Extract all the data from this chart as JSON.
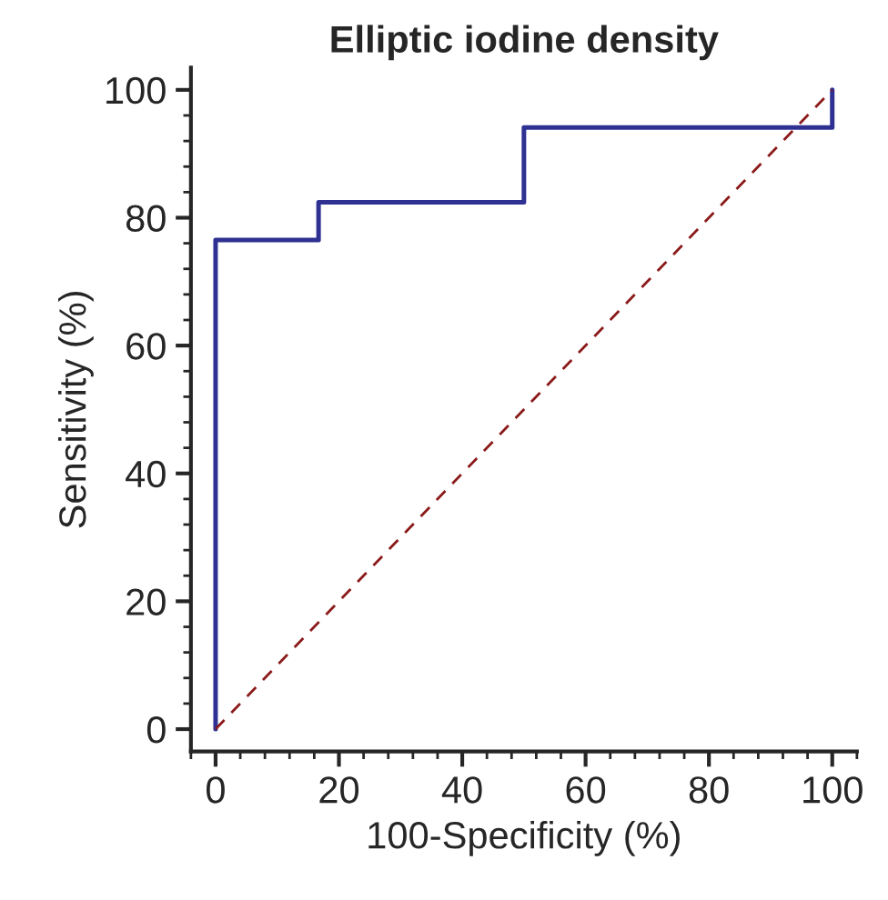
{
  "chart_data": {
    "type": "line",
    "title": "Elliptic iodine density",
    "xlabel": "100-Specificity (%)",
    "ylabel": "Sensitivity (%)",
    "xlim": [
      -4,
      104
    ],
    "ylim": [
      -3.5,
      103.5
    ],
    "xticks": [
      0,
      20,
      40,
      60,
      80,
      100
    ],
    "yticks": [
      0,
      20,
      40,
      60,
      80,
      100
    ],
    "grid": false,
    "legend": false,
    "marker": "none",
    "series": [
      {
        "color": "#2e3192",
        "line_style": "solid",
        "x": [
          0,
          0,
          16.7,
          16.7,
          50,
          50,
          100,
          100
        ],
        "values": [
          0,
          76.5,
          76.5,
          82.4,
          82.4,
          94.1,
          94.1,
          100
        ]
      },
      {
        "color": "#8b1a1a",
        "line_style": "dashed",
        "x": [
          0,
          100
        ],
        "values": [
          0,
          100
        ]
      }
    ]
  }
}
